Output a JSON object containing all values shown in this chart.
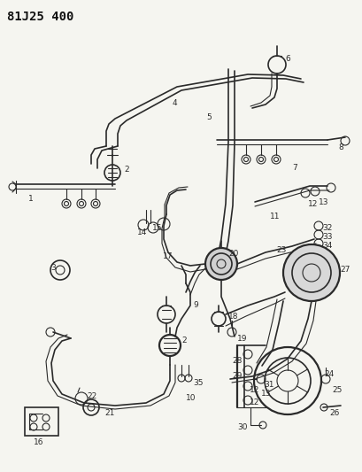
{
  "title": "81J25 400",
  "bg_color": "#f5f5f0",
  "line_color": "#2a2a2a",
  "title_fontsize": 10,
  "fig_width": 4.09,
  "fig_height": 5.33,
  "dpi": 100
}
